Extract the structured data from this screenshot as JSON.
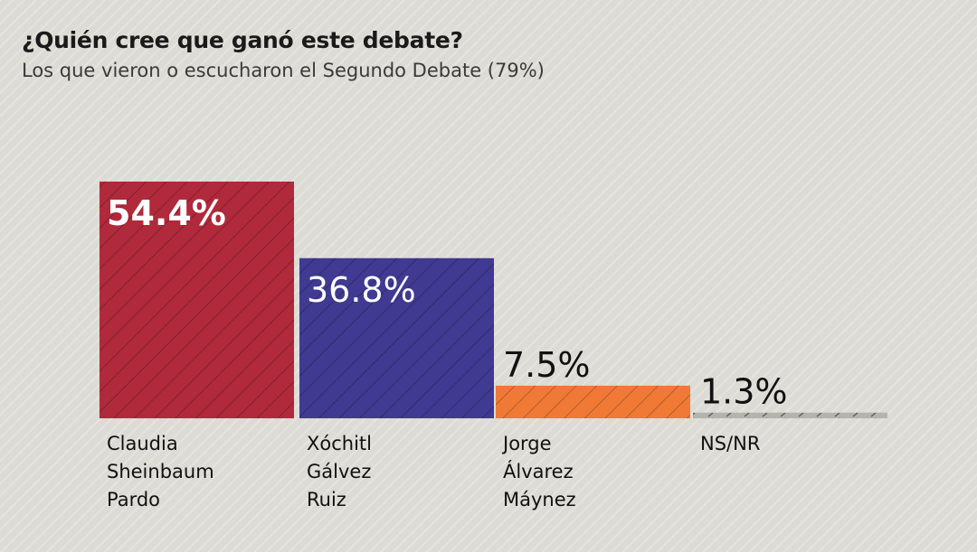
{
  "title": "¿Quién cree que ganó este debate?",
  "subtitle": "Los que vieron o escucharon el Segundo Debate (79%)",
  "chart_data": {
    "type": "bar",
    "title": "¿Quién cree que ganó este debate?",
    "subtitle": "Los que vieron o escucharon el Segundo Debate (79%)",
    "categories": [
      "Claudia Sheinbaum Pardo",
      "Xóchitl Gálvez Ruiz",
      "Jorge Álvarez Máynez",
      "NS/NR"
    ],
    "category_lines": [
      [
        "Claudia",
        "Sheinbaum",
        "Pardo"
      ],
      [
        "Xóchitl",
        "Gálvez",
        "Ruiz"
      ],
      [
        "Jorge",
        "Álvarez",
        "Máynez"
      ],
      [
        "NS/NR"
      ]
    ],
    "values": [
      54.4,
      36.8,
      7.5,
      1.3
    ],
    "value_labels": [
      "54.4%",
      "36.8%",
      "7.5%",
      "1.3%"
    ],
    "colors": [
      "#b02a3b",
      "#403a92",
      "#f07a35",
      "#b4b3ae"
    ],
    "ylim": [
      0,
      54.4
    ],
    "xlabel": "",
    "ylabel": "",
    "grid": false
  }
}
